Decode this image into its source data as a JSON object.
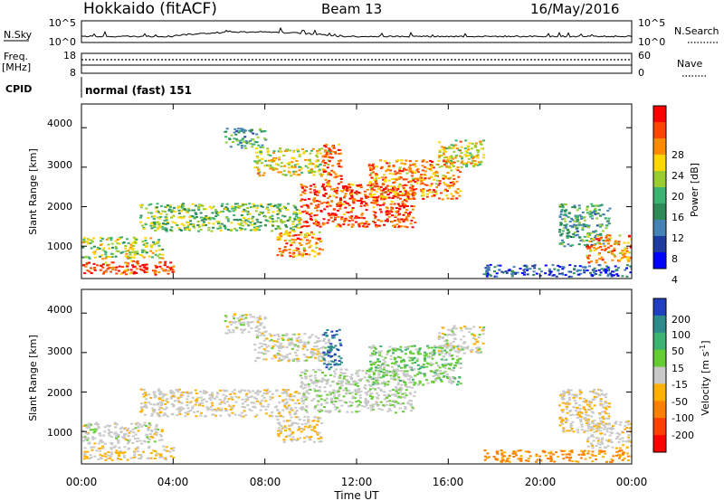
{
  "header": {
    "station": "Hokkaido (fitACF)",
    "beam": "Beam 13",
    "date": "16/May/2016"
  },
  "nsky_panel": {
    "left_label": "N.Sky",
    "right_label": "N.Search",
    "left_ticks": [
      "10^5",
      "10^0"
    ],
    "right_ticks": [
      "10^5",
      "10^0"
    ],
    "right_line_style": "dotted"
  },
  "freq_panel": {
    "left_label_1": "Freq.",
    "left_label_2": "[MHz]",
    "left_ticks": [
      "18",
      "8"
    ],
    "right_label": "Nave",
    "right_ticks": [
      "60",
      "0"
    ],
    "right_line_style": "dotted"
  },
  "cpid_panel": {
    "label": "CPID",
    "mode_text": "normal (fast) 151"
  },
  "power_panel": {
    "ylabel": "Slant Range [km]",
    "y_ticks": [
      "4000",
      "3000",
      "2000",
      "1000"
    ],
    "colorbar_label": "Power [dB]",
    "colorbar_ticks": [
      "28",
      "24",
      "20",
      "16",
      "12",
      "8",
      "4"
    ],
    "colorbar_colors": [
      "#ff0000",
      "#ff4500",
      "#ff8c00",
      "#ffd700",
      "#9acd32",
      "#3cb371",
      "#2e8b57",
      "#4682b4",
      "#1e3ca0",
      "#0000ff"
    ]
  },
  "velocity_panel": {
    "ylabel": "Slant Range [km]",
    "y_ticks": [
      "4000",
      "3000",
      "2000",
      "1000"
    ],
    "colorbar_label_main": "Velocity [m s",
    "colorbar_label_sup": "-1",
    "colorbar_label_end": "]",
    "colorbar_ticks": [
      "200",
      "100",
      "50",
      "15",
      "-15",
      "-50",
      "-100",
      "-200"
    ],
    "colorbar_colors": [
      "#2040c0",
      "#2e8b8b",
      "#3cb371",
      "#66cc33",
      "#c8c8c8",
      "#ffb000",
      "#ff8000",
      "#ff4000",
      "#ff0000"
    ]
  },
  "x_axis": {
    "label": "Time UT",
    "ticks": [
      "00:00",
      "04:00",
      "08:00",
      "12:00",
      "16:00",
      "20:00",
      "00:00"
    ]
  },
  "chart_data": {
    "type": "heatmap",
    "title": "Hokkaido (fitACF)",
    "subtitle": "Beam 13",
    "date": "16/May/2016",
    "xlabel": "Time UT",
    "ylabel": "Slant Range [km]",
    "xlim": [
      0,
      24
    ],
    "ylim": [
      180,
      4600
    ],
    "power_range_db": [
      0,
      32
    ],
    "velocity_range": [
      -250,
      250
    ],
    "echo_regions": [
      {
        "t0": 0.0,
        "t1": 4.0,
        "r0": 300,
        "r1": 650,
        "power": 28,
        "velocity": -10
      },
      {
        "t0": 0.0,
        "t1": 3.5,
        "r0": 700,
        "r1": 1250,
        "power": 18,
        "velocity": 0
      },
      {
        "t0": 2.5,
        "t1": 9.5,
        "r0": 1400,
        "r1": 2100,
        "power": 16,
        "velocity": -5
      },
      {
        "t0": 6.2,
        "t1": 8.0,
        "r0": 3500,
        "r1": 4000,
        "power": 12,
        "velocity": 0
      },
      {
        "t0": 7.5,
        "t1": 10.8,
        "r0": 2800,
        "r1": 3500,
        "power": 20,
        "velocity": 0
      },
      {
        "t0": 8.5,
        "t1": 10.5,
        "r0": 750,
        "r1": 1400,
        "power": 24,
        "velocity": -10
      },
      {
        "t0": 9.5,
        "t1": 14.5,
        "r0": 1500,
        "r1": 2600,
        "power": 28,
        "velocity": 5
      },
      {
        "t0": 12.5,
        "t1": 16.5,
        "r0": 2200,
        "r1": 3200,
        "power": 24,
        "velocity": 20
      },
      {
        "t0": 15.5,
        "t1": 17.5,
        "r0": 3000,
        "r1": 3700,
        "power": 20,
        "velocity": 0
      },
      {
        "t0": 10.5,
        "t1": 11.3,
        "r0": 2600,
        "r1": 3600,
        "power": 28,
        "velocity": 150
      },
      {
        "t0": 20.8,
        "t1": 23.0,
        "r0": 1000,
        "r1": 2100,
        "power": 12,
        "velocity": -10
      },
      {
        "t0": 22.0,
        "t1": 24.0,
        "r0": 600,
        "r1": 1300,
        "power": 24,
        "velocity": -5
      },
      {
        "t0": 17.5,
        "t1": 24.0,
        "r0": 250,
        "r1": 550,
        "power": 6,
        "velocity": -60
      }
    ]
  }
}
